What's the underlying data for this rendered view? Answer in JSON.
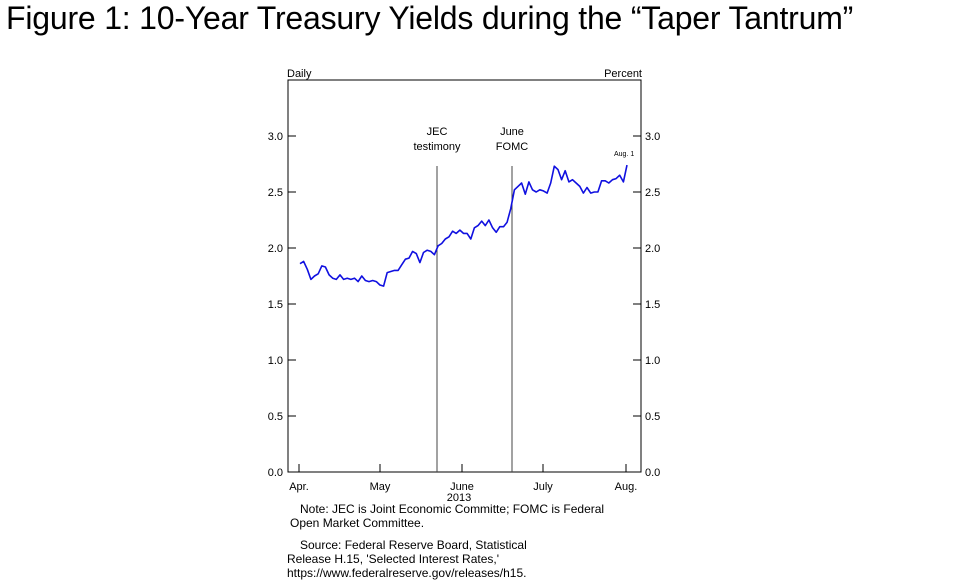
{
  "title": "Figure 1:  10-Year Treasury Yields during the “Taper Tantrum”",
  "chart_data": {
    "type": "line",
    "frequency_label": "Daily",
    "unit_label": "Percent",
    "ylim": [
      0,
      3.5
    ],
    "yticks": [
      "0.0",
      "0.5",
      "1.0",
      "1.5",
      "2.0",
      "2.5",
      "3.0"
    ],
    "month_labels": [
      "Apr.",
      "May",
      "June",
      "July",
      "Aug."
    ],
    "year_label": "2013",
    "grid": false,
    "color": "#1010e0",
    "annotations": [
      {
        "label_lines": [
          "JEC",
          "testimony"
        ],
        "date": "May 22"
      },
      {
        "label_lines": [
          "June",
          "FOMC"
        ],
        "date": "June 19"
      }
    ],
    "end_label": "Aug. 1",
    "series": [
      {
        "name": "10-Year Treasury Yield",
        "values": [
          1.86,
          1.88,
          1.81,
          1.72,
          1.75,
          1.77,
          1.84,
          1.83,
          1.76,
          1.73,
          1.72,
          1.76,
          1.72,
          1.73,
          1.72,
          1.73,
          1.7,
          1.75,
          1.71,
          1.7,
          1.71,
          1.7,
          1.67,
          1.66,
          1.78,
          1.79,
          1.8,
          1.8,
          1.85,
          1.9,
          1.91,
          1.97,
          1.95,
          1.87,
          1.96,
          1.98,
          1.97,
          1.94,
          2.02,
          2.04,
          2.08,
          2.1,
          2.15,
          2.13,
          2.16,
          2.13,
          2.13,
          2.08,
          2.18,
          2.2,
          2.24,
          2.2,
          2.25,
          2.18,
          2.14,
          2.19,
          2.19,
          2.23,
          2.35,
          2.52,
          2.55,
          2.58,
          2.48,
          2.59,
          2.52,
          2.5,
          2.52,
          2.51,
          2.49,
          2.58,
          2.73,
          2.7,
          2.61,
          2.69,
          2.59,
          2.61,
          2.58,
          2.55,
          2.49,
          2.54,
          2.49,
          2.5,
          2.5,
          2.6,
          2.6,
          2.58,
          2.61,
          2.62,
          2.65,
          2.59,
          2.74
        ]
      }
    ]
  },
  "notes": {
    "note_line1": "Note:  JEC is Joint Economic Committe; FOMC is Federal",
    "note_line2": "Open Market Committee.",
    "source_line1": "Source:  Federal Reserve Board, Statistical",
    "source_line2": "Release H.15, 'Selected Interest Rates,'",
    "source_line3": "https://www.federalreserve.gov/releases/h15."
  }
}
